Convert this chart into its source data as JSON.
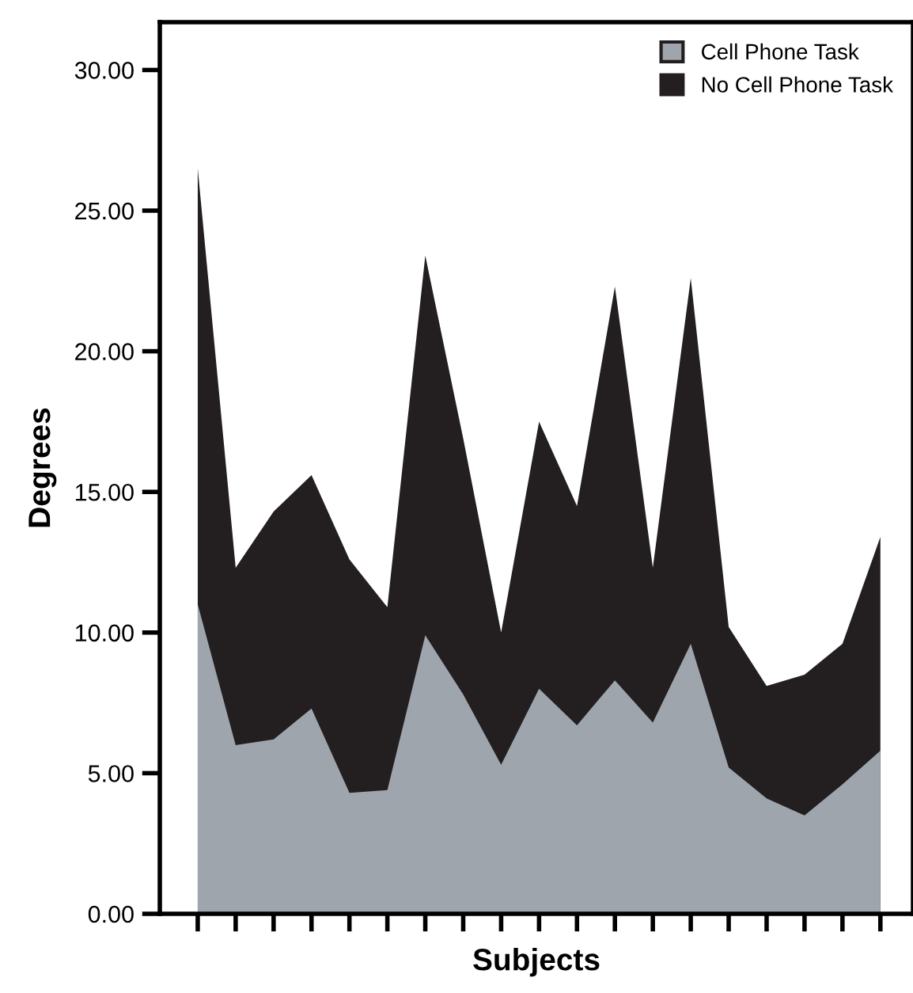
{
  "chart_data": {
    "type": "area",
    "xlabel": "Subjects",
    "ylabel": "Degrees",
    "categories": [
      null,
      null,
      null,
      null,
      null,
      null,
      null,
      null,
      null,
      null,
      null,
      null,
      null,
      null,
      null,
      null,
      null,
      null,
      null
    ],
    "series": [
      {
        "name": "No Cell Phone Task",
        "color": "#231f20",
        "values": [
          26.5,
          12.3,
          14.3,
          15.6,
          12.6,
          10.9,
          23.4,
          16.9,
          10.0,
          17.5,
          14.5,
          22.3,
          12.3,
          22.6,
          10.2,
          8.1,
          8.5,
          9.6,
          13.4
        ]
      },
      {
        "name": "Cell Phone Task",
        "color": "#9ea5ad",
        "values": [
          11.0,
          6.0,
          6.2,
          7.3,
          4.3,
          4.4,
          9.9,
          7.8,
          5.3,
          8.0,
          6.7,
          8.3,
          6.8,
          9.6,
          5.2,
          4.1,
          3.5,
          4.6,
          5.8
        ]
      }
    ],
    "ylim": [
      0,
      31.7
    ],
    "yticks": [
      {
        "value": 0,
        "label": "0.00"
      },
      {
        "value": 5,
        "label": "5.00"
      },
      {
        "value": 10,
        "label": "10.00"
      },
      {
        "value": 15,
        "label": "15.00"
      },
      {
        "value": 20,
        "label": "20.00"
      },
      {
        "value": 25,
        "label": "25.00"
      },
      {
        "value": 30,
        "label": "30.00"
      }
    ],
    "grid": false,
    "legend": "top right"
  }
}
